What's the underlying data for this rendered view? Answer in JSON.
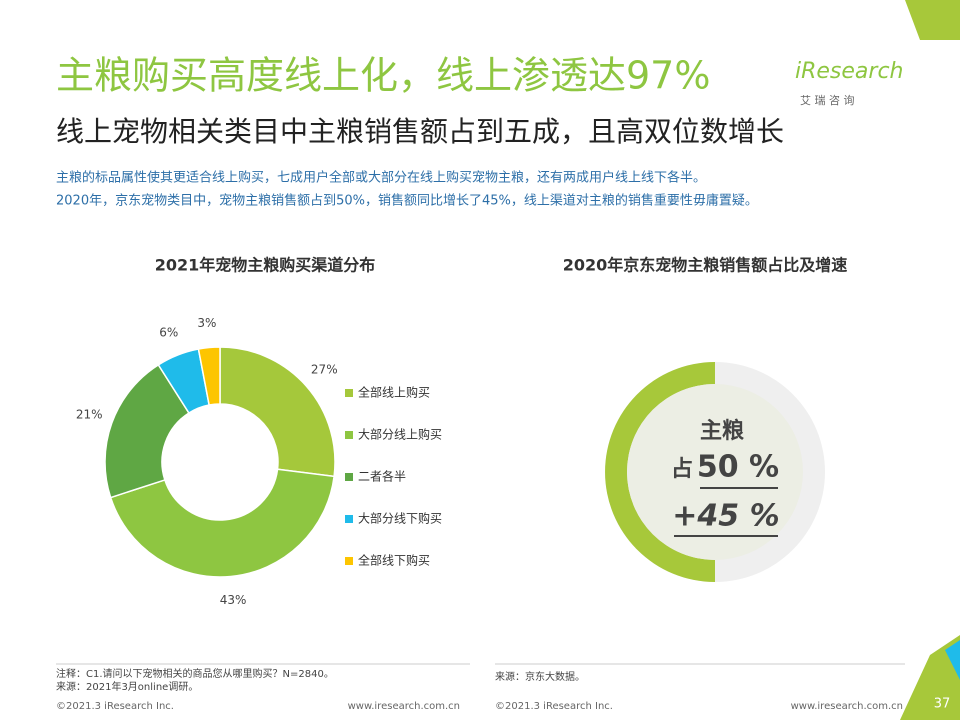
{
  "header": {
    "title": "主粮购买高度线上化，线上渗透达97%",
    "subtitle": "线上宠物相关类目中主粮销售额占到五成，且高双位数增长",
    "logo": "iResearch",
    "logo_cn": "艾 瑞 咨 询"
  },
  "description": [
    "主粮的标品属性使其更适合线上购买，七成用户全部或大部分在线上购买宠物主粮，还有两成用户线上线下各半。",
    "2020年，京东宠物类目中，宠物主粮销售额占到50%，销售额同比增长了45%，线上渠道对主粮的销售重要性毋庸置疑。"
  ],
  "chart_data": [
    {
      "type": "donut",
      "title": "2021年宠物主粮购买渠道分布",
      "series": [
        {
          "name": "全部线上购买",
          "color": "#a5c83b",
          "values": [
            27
          ]
        },
        {
          "name": "大部分线上购买",
          "color": "#8ec641",
          "values": [
            43
          ]
        },
        {
          "name": "二者各半",
          "color": "#5fa744",
          "values": [
            21
          ]
        },
        {
          "name": "大部分线下购买",
          "color": "#1fbbea",
          "values": [
            6
          ]
        },
        {
          "name": "全部线下购买",
          "color": "#fdc500",
          "values": [
            3
          ]
        }
      ],
      "value_labels": [
        "27%",
        "43%",
        "21%",
        "6%",
        "3%"
      ]
    },
    {
      "type": "ring",
      "title": "2020年京东宠物主粮销售额占比及增速",
      "category": "主粮",
      "share_prefix": "占",
      "values": [
        50
      ],
      "value_labels": [
        "50 %"
      ],
      "color": "#a7c83a",
      "growth": {
        "value": 45,
        "label": "+45 %"
      }
    }
  ],
  "footer": {
    "note": "注释：C1.请问以下宠物相关的商品您从哪里购买？N=2840。",
    "source_left": "来源：2021年3月online调研。",
    "source_right": "来源：京东大数据。",
    "copyright_left": "©2021.3 iResearch Inc.",
    "url_left": "www.iresearch.com.cn",
    "copyright_right": "©2021.3 iResearch Inc.",
    "url_right": "www.iresearch.com.cn",
    "page": "37"
  }
}
